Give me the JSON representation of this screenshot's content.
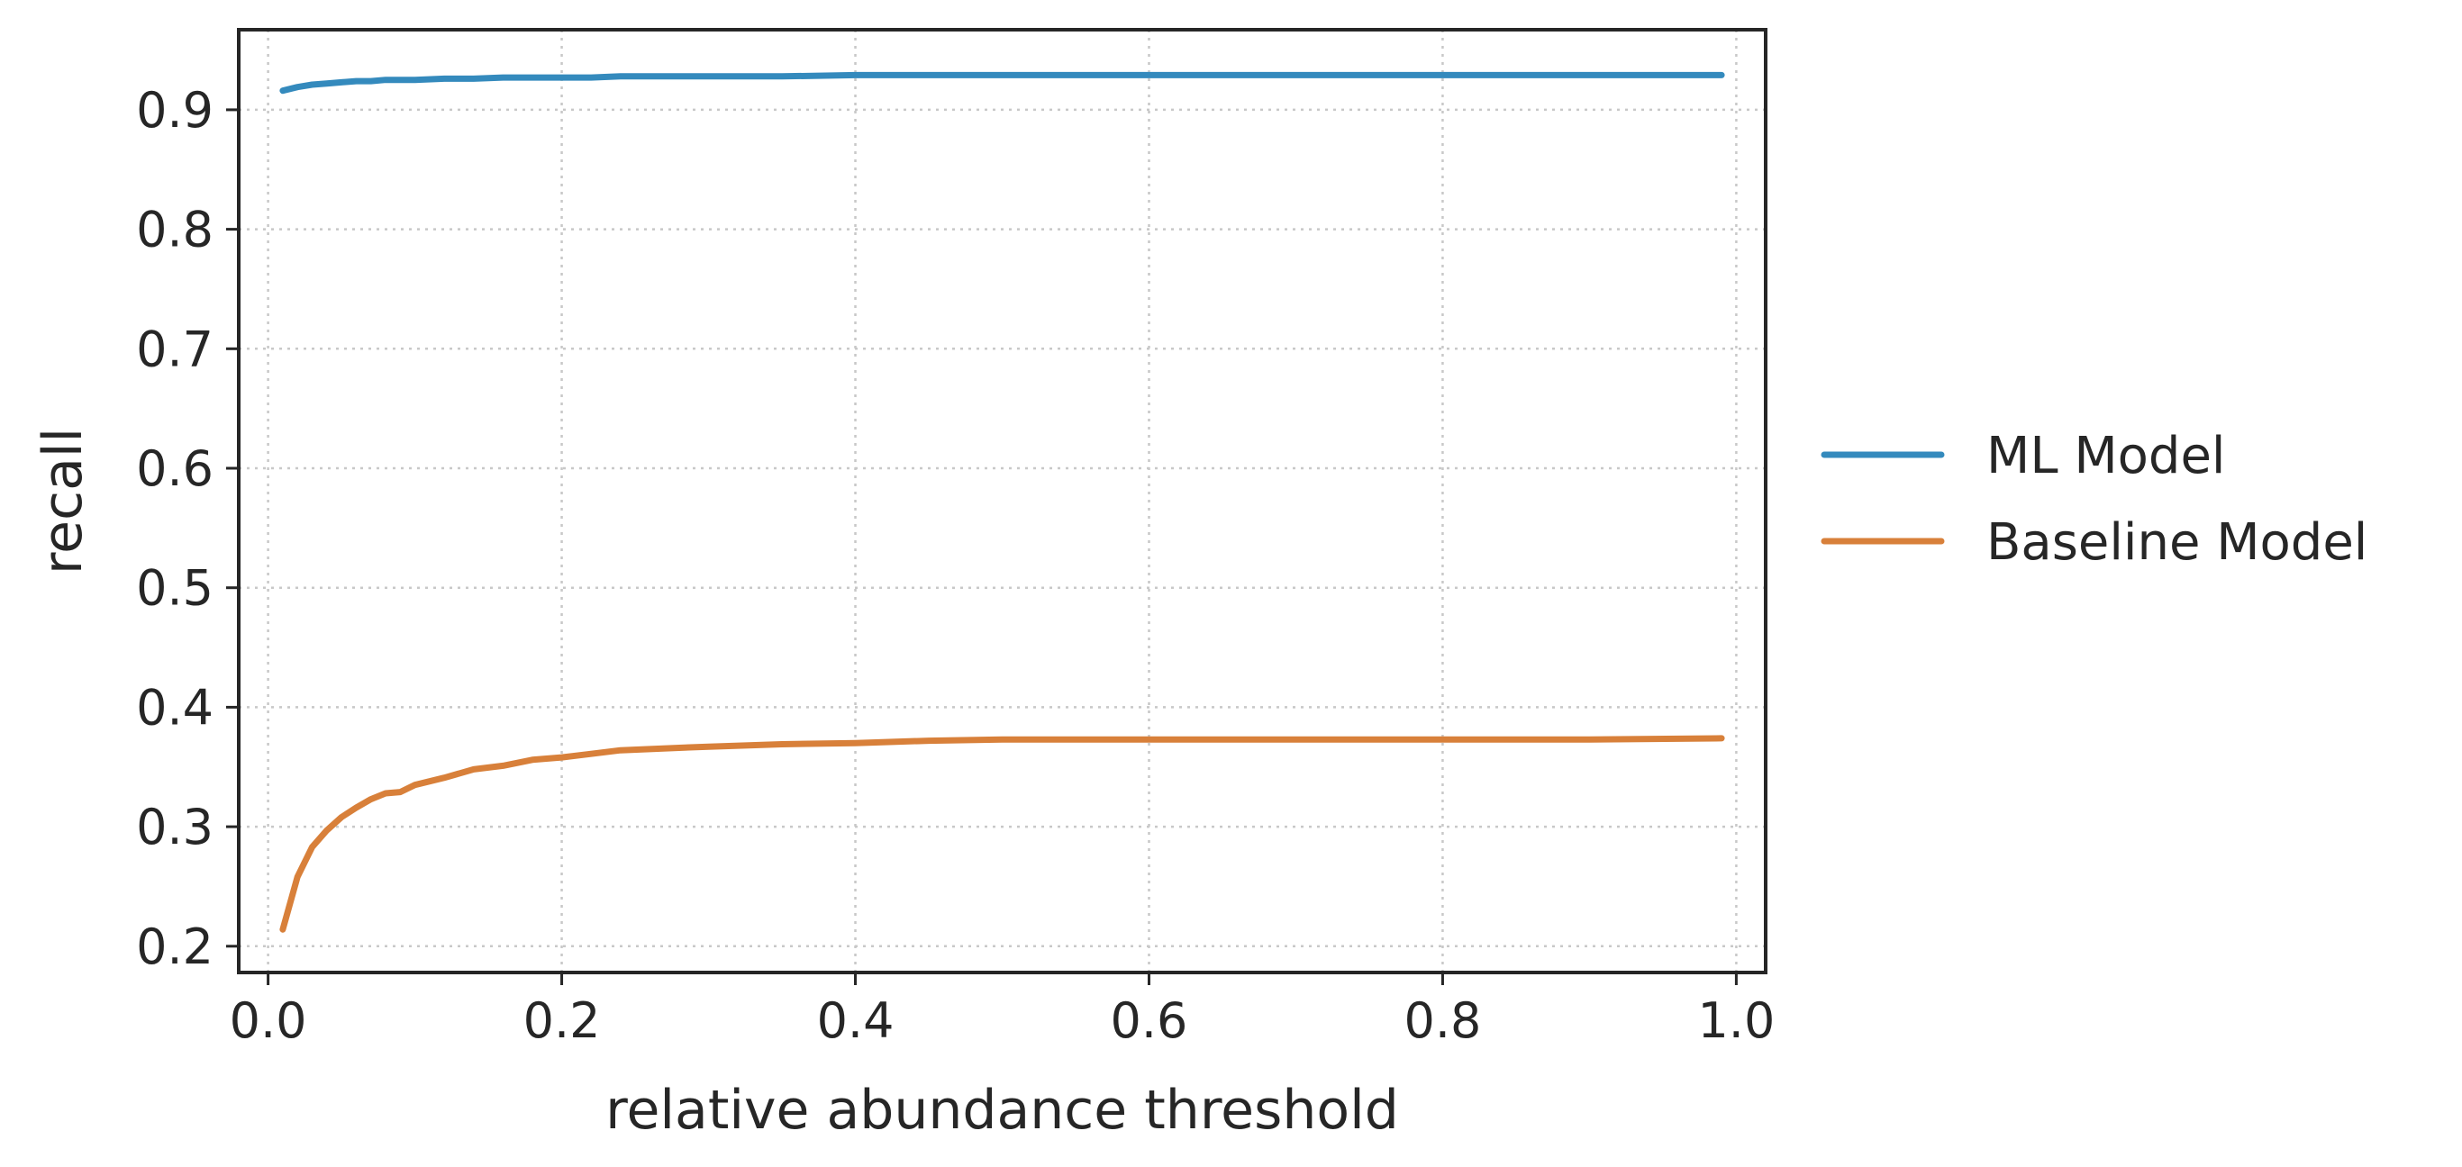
{
  "chart_data": {
    "type": "line",
    "xlabel": "relative abundance threshold",
    "ylabel": "recall",
    "xlim": [
      -0.02,
      1.02
    ],
    "ylim": [
      0.178,
      0.967
    ],
    "xticks": [
      "0.0",
      "0.2",
      "0.4",
      "0.6",
      "0.8",
      "1.0"
    ],
    "yticks": [
      "0.2",
      "0.3",
      "0.4",
      "0.5",
      "0.6",
      "0.7",
      "0.8",
      "0.9"
    ],
    "grid": true,
    "legend_position": "right-outside",
    "x": [
      0.01,
      0.02,
      0.03,
      0.04,
      0.05,
      0.06,
      0.07,
      0.08,
      0.09,
      0.1,
      0.12,
      0.14,
      0.16,
      0.18,
      0.2,
      0.22,
      0.24,
      0.26,
      0.28,
      0.3,
      0.35,
      0.4,
      0.45,
      0.5,
      0.6,
      0.7,
      0.8,
      0.9,
      0.99
    ],
    "series": [
      {
        "name": "ML Model",
        "color": "#348abd",
        "values": [
          0.916,
          0.919,
          0.921,
          0.922,
          0.923,
          0.924,
          0.924,
          0.925,
          0.925,
          0.925,
          0.926,
          0.926,
          0.927,
          0.927,
          0.927,
          0.927,
          0.928,
          0.928,
          0.928,
          0.928,
          0.928,
          0.929,
          0.929,
          0.929,
          0.929,
          0.929,
          0.929,
          0.929,
          0.929
        ]
      },
      {
        "name": "Baseline Model",
        "color": "#d8803a",
        "values": [
          0.214,
          0.258,
          0.283,
          0.297,
          0.308,
          0.316,
          0.323,
          0.328,
          0.329,
          0.335,
          0.341,
          0.348,
          0.351,
          0.356,
          0.358,
          0.361,
          0.364,
          0.365,
          0.366,
          0.367,
          0.369,
          0.37,
          0.372,
          0.373,
          0.373,
          0.373,
          0.373,
          0.373,
          0.374
        ]
      }
    ]
  }
}
